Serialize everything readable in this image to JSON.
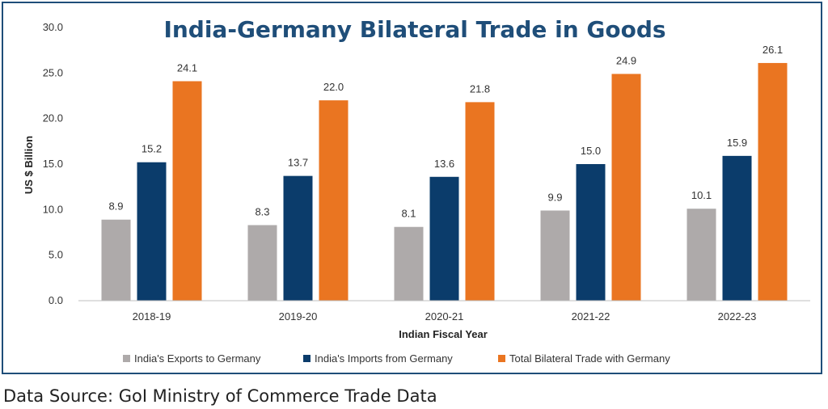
{
  "chart_data": {
    "type": "bar",
    "title": "India-Germany Bilateral Trade in Goods",
    "xlabel": "Indian Fiscal Year",
    "ylabel": "US $ Billion",
    "ylim": [
      0,
      30
    ],
    "yticks": [
      "0.0",
      "5.0",
      "10.0",
      "15.0",
      "20.0",
      "25.0",
      "30.0"
    ],
    "categories": [
      "2018-19",
      "2019-20",
      "2020-21",
      "2021-22",
      "2022-23"
    ],
    "series": [
      {
        "name": "India's Exports to Germany",
        "values": [
          8.9,
          8.3,
          8.1,
          9.9,
          10.1
        ],
        "labels": [
          "8.9",
          "8.3",
          "8.1",
          "9.9",
          "10.1"
        ],
        "color": "#aeaaaa"
      },
      {
        "name": "India's Imports from Germany",
        "values": [
          15.2,
          13.7,
          13.6,
          15.0,
          15.9
        ],
        "labels": [
          "15.2",
          "13.7",
          "13.6",
          "15.0",
          "15.9"
        ],
        "color": "#0b3c6b"
      },
      {
        "name": "Total Bilateral Trade with Germany",
        "values": [
          24.1,
          22.0,
          21.8,
          24.9,
          26.1
        ],
        "labels": [
          "24.1",
          "22.0",
          "21.8",
          "24.9",
          "26.1"
        ],
        "color": "#ea7521"
      }
    ],
    "title_color": "#1f4e79",
    "grid": false,
    "legend": "bottom"
  },
  "footer": {
    "source": "Data Source: GoI Ministry of Commerce Trade Data"
  }
}
